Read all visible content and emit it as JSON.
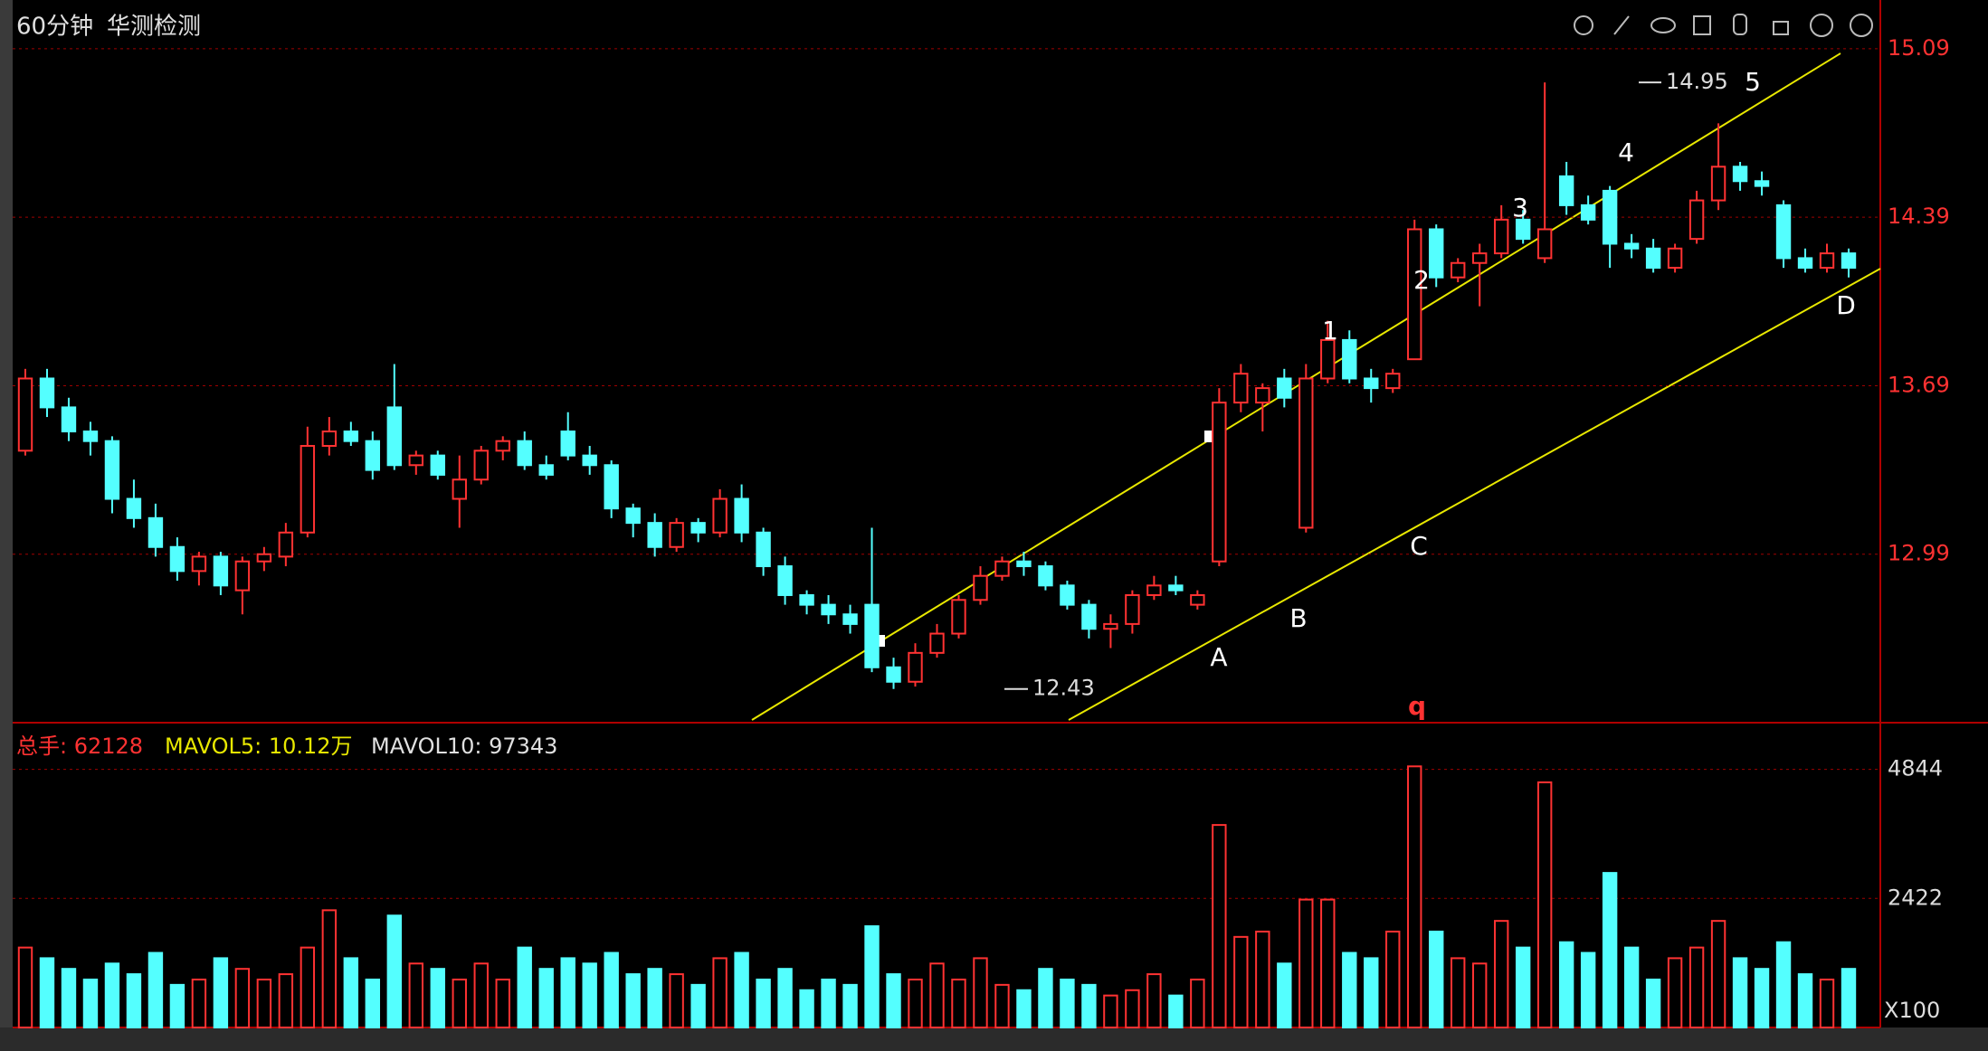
{
  "chart_data": {
    "type": "candlestick",
    "period": "60分钟",
    "title": "华测检测",
    "up_color": "#ff3232",
    "down_color": "#54ffff",
    "ylim": [
      12.29,
      15.24
    ],
    "yticks": [
      12.99,
      13.69,
      14.39,
      15.09
    ],
    "grid": true,
    "low_label": 12.43,
    "high_label": 14.95,
    "wave_labels": [
      "1",
      "2",
      "3",
      "4",
      "5",
      "A",
      "B",
      "C",
      "D",
      "q"
    ],
    "ohlc": [
      [
        13.42,
        13.76,
        13.4,
        13.72
      ],
      [
        13.72,
        13.76,
        13.56,
        13.6
      ],
      [
        13.6,
        13.64,
        13.46,
        13.5
      ],
      [
        13.5,
        13.54,
        13.4,
        13.46
      ],
      [
        13.46,
        13.48,
        13.16,
        13.22
      ],
      [
        13.22,
        13.3,
        13.1,
        13.14
      ],
      [
        13.14,
        13.2,
        12.98,
        13.02
      ],
      [
        13.02,
        13.06,
        12.88,
        12.92
      ],
      [
        12.92,
        13.0,
        12.86,
        12.98
      ],
      [
        12.98,
        13.0,
        12.82,
        12.86
      ],
      [
        12.84,
        12.98,
        12.74,
        12.96
      ],
      [
        12.96,
        13.02,
        12.92,
        12.99
      ],
      [
        12.98,
        13.12,
        12.94,
        13.08
      ],
      [
        13.08,
        13.52,
        13.06,
        13.44
      ],
      [
        13.44,
        13.56,
        13.4,
        13.5
      ],
      [
        13.5,
        13.54,
        13.44,
        13.46
      ],
      [
        13.46,
        13.5,
        13.3,
        13.34
      ],
      [
        13.6,
        13.78,
        13.34,
        13.36
      ],
      [
        13.36,
        13.42,
        13.32,
        13.4
      ],
      [
        13.4,
        13.42,
        13.3,
        13.32
      ],
      [
        13.22,
        13.4,
        13.1,
        13.3
      ],
      [
        13.3,
        13.44,
        13.28,
        13.42
      ],
      [
        13.42,
        13.48,
        13.38,
        13.46
      ],
      [
        13.46,
        13.5,
        13.34,
        13.36
      ],
      [
        13.36,
        13.4,
        13.3,
        13.32
      ],
      [
        13.5,
        13.58,
        13.38,
        13.4
      ],
      [
        13.4,
        13.44,
        13.32,
        13.36
      ],
      [
        13.36,
        13.38,
        13.14,
        13.18
      ],
      [
        13.18,
        13.2,
        13.06,
        13.12
      ],
      [
        13.12,
        13.16,
        12.98,
        13.02
      ],
      [
        13.02,
        13.14,
        13.0,
        13.12
      ],
      [
        13.12,
        13.14,
        13.04,
        13.08
      ],
      [
        13.08,
        13.26,
        13.06,
        13.22
      ],
      [
        13.22,
        13.28,
        13.04,
        13.08
      ],
      [
        13.08,
        13.1,
        12.9,
        12.94
      ],
      [
        12.94,
        12.98,
        12.78,
        12.82
      ],
      [
        12.82,
        12.84,
        12.74,
        12.78
      ],
      [
        12.78,
        12.82,
        12.7,
        12.74
      ],
      [
        12.74,
        12.78,
        12.66,
        12.7
      ],
      [
        12.78,
        13.1,
        12.5,
        12.52
      ],
      [
        12.52,
        12.56,
        12.43,
        12.46
      ],
      [
        12.46,
        12.62,
        12.44,
        12.58
      ],
      [
        12.58,
        12.7,
        12.56,
        12.66
      ],
      [
        12.66,
        12.82,
        12.64,
        12.8
      ],
      [
        12.8,
        12.94,
        12.78,
        12.9
      ],
      [
        12.9,
        12.98,
        12.88,
        12.96
      ],
      [
        12.96,
        13.0,
        12.9,
        12.94
      ],
      [
        12.94,
        12.96,
        12.84,
        12.86
      ],
      [
        12.86,
        12.88,
        12.76,
        12.78
      ],
      [
        12.78,
        12.8,
        12.64,
        12.68
      ],
      [
        12.68,
        12.74,
        12.6,
        12.7
      ],
      [
        12.7,
        12.84,
        12.66,
        12.82
      ],
      [
        12.82,
        12.9,
        12.8,
        12.86
      ],
      [
        12.86,
        12.9,
        12.82,
        12.84
      ],
      [
        12.78,
        12.84,
        12.76,
        12.82
      ],
      [
        12.96,
        13.68,
        12.94,
        13.62
      ],
      [
        13.62,
        13.78,
        13.58,
        13.74
      ],
      [
        13.62,
        13.7,
        13.5,
        13.68
      ],
      [
        13.72,
        13.76,
        13.6,
        13.64
      ],
      [
        13.1,
        13.78,
        13.08,
        13.72
      ],
      [
        13.72,
        13.96,
        13.7,
        13.88
      ],
      [
        13.88,
        13.92,
        13.7,
        13.72
      ],
      [
        13.72,
        13.76,
        13.62,
        13.68
      ],
      [
        13.68,
        13.76,
        13.66,
        13.74
      ],
      [
        13.8,
        14.38,
        13.8,
        14.34
      ],
      [
        14.34,
        14.36,
        14.1,
        14.14
      ],
      [
        14.14,
        14.22,
        14.12,
        14.2
      ],
      [
        14.2,
        14.28,
        14.02,
        14.24
      ],
      [
        14.24,
        14.44,
        14.22,
        14.38
      ],
      [
        14.38,
        14.42,
        14.28,
        14.3
      ],
      [
        14.22,
        14.95,
        14.2,
        14.34
      ],
      [
        14.56,
        14.62,
        14.4,
        14.44
      ],
      [
        14.44,
        14.48,
        14.36,
        14.38
      ],
      [
        14.5,
        14.52,
        14.18,
        14.28
      ],
      [
        14.28,
        14.32,
        14.22,
        14.26
      ],
      [
        14.26,
        14.3,
        14.16,
        14.18
      ],
      [
        14.18,
        14.28,
        14.16,
        14.26
      ],
      [
        14.3,
        14.5,
        14.28,
        14.46
      ],
      [
        14.46,
        14.78,
        14.42,
        14.6
      ],
      [
        14.6,
        14.62,
        14.5,
        14.54
      ],
      [
        14.54,
        14.58,
        14.48,
        14.52
      ],
      [
        14.44,
        14.46,
        14.18,
        14.22
      ],
      [
        14.22,
        14.26,
        14.16,
        14.18
      ],
      [
        14.18,
        14.28,
        14.16,
        14.24
      ],
      [
        14.24,
        14.26,
        14.14,
        14.18
      ]
    ],
    "volume": {
      "indicators": [
        "总手: 62128",
        "MAVOL5: 10.12万",
        "MAVOL10: 97343"
      ],
      "unit": "X100",
      "ylim": [
        0,
        5533
      ],
      "yticks": [
        2422,
        4844
      ],
      "values": [
        1500,
        1300,
        1100,
        900,
        1200,
        1000,
        1400,
        800,
        900,
        1300,
        1100,
        900,
        1000,
        1500,
        2200,
        1300,
        900,
        2100,
        1200,
        1100,
        900,
        1200,
        900,
        1500,
        1100,
        1300,
        1200,
        1400,
        1000,
        1100,
        1000,
        800,
        1300,
        1400,
        900,
        1100,
        700,
        900,
        800,
        1900,
        1000,
        900,
        1200,
        900,
        1300,
        800,
        700,
        1100,
        900,
        800,
        600,
        700,
        1000,
        600,
        900,
        3800,
        1700,
        1800,
        1200,
        2400,
        2400,
        1400,
        1300,
        1800,
        4900,
        1800,
        1300,
        1200,
        2000,
        1500,
        4600,
        1600,
        1400,
        2900,
        1500,
        900,
        1300,
        1500,
        2000,
        1300,
        1100,
        1600,
        1000,
        900,
        1100
      ]
    }
  }
}
